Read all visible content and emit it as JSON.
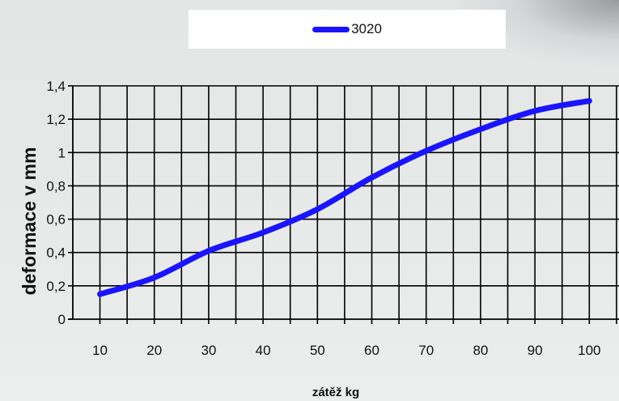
{
  "chart_data": {
    "type": "line",
    "title": "",
    "xlabel": "zátěž kg",
    "ylabel": "deformace v mm",
    "x": [
      10,
      20,
      30,
      40,
      50,
      60,
      70,
      80,
      90,
      100
    ],
    "x_tick_labels": [
      "10",
      "20",
      "30",
      "40",
      "50",
      "60",
      "70",
      "80",
      "90",
      "100"
    ],
    "y_tick_labels": [
      "0",
      "0,2",
      "0,4",
      "0,6",
      "0,8",
      "1",
      "1,2",
      "1,4"
    ],
    "y_ticks": [
      0,
      0.2,
      0.4,
      0.6,
      0.8,
      1.0,
      1.2,
      1.4
    ],
    "ylim": [
      0,
      1.4
    ],
    "grid": true,
    "legend_position": "top",
    "series": [
      {
        "name": "3020",
        "color": "#1a14ff",
        "values": [
          0.15,
          0.25,
          0.41,
          0.52,
          0.66,
          0.85,
          1.01,
          1.14,
          1.25,
          1.31
        ]
      }
    ]
  }
}
